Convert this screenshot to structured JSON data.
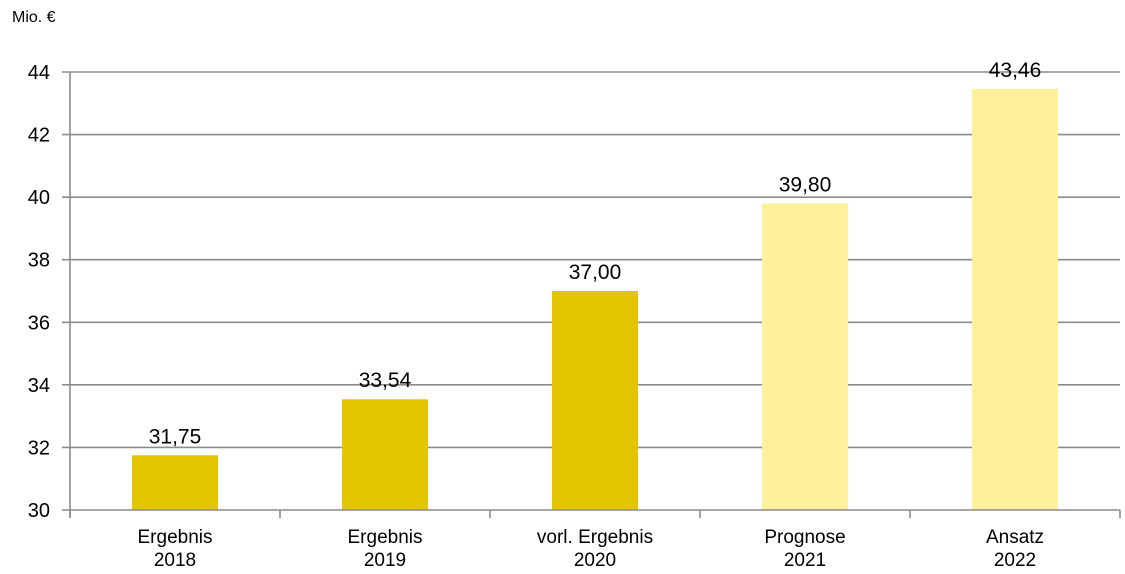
{
  "chart_data": {
    "type": "bar",
    "unit_label": "Mio. €",
    "categories": [
      [
        "Ergebnis",
        "2018"
      ],
      [
        "Ergebnis",
        "2019"
      ],
      [
        "vorl. Ergebnis",
        "2020"
      ],
      [
        "Prognose",
        "2021"
      ],
      [
        "Ansatz",
        "2022"
      ]
    ],
    "values": [
      31.75,
      33.54,
      37.0,
      39.8,
      43.46
    ],
    "value_labels": [
      "31,75",
      "33,54",
      "37,00",
      "39,80",
      "43,46"
    ],
    "bar_colors": [
      "#e3c500",
      "#e3c500",
      "#e3c500",
      "#fff09c",
      "#fff09c"
    ],
    "ylim": [
      30,
      44
    ],
    "yticks": [
      30,
      32,
      34,
      36,
      38,
      40,
      42,
      44
    ],
    "grid": true,
    "legend": "none"
  }
}
